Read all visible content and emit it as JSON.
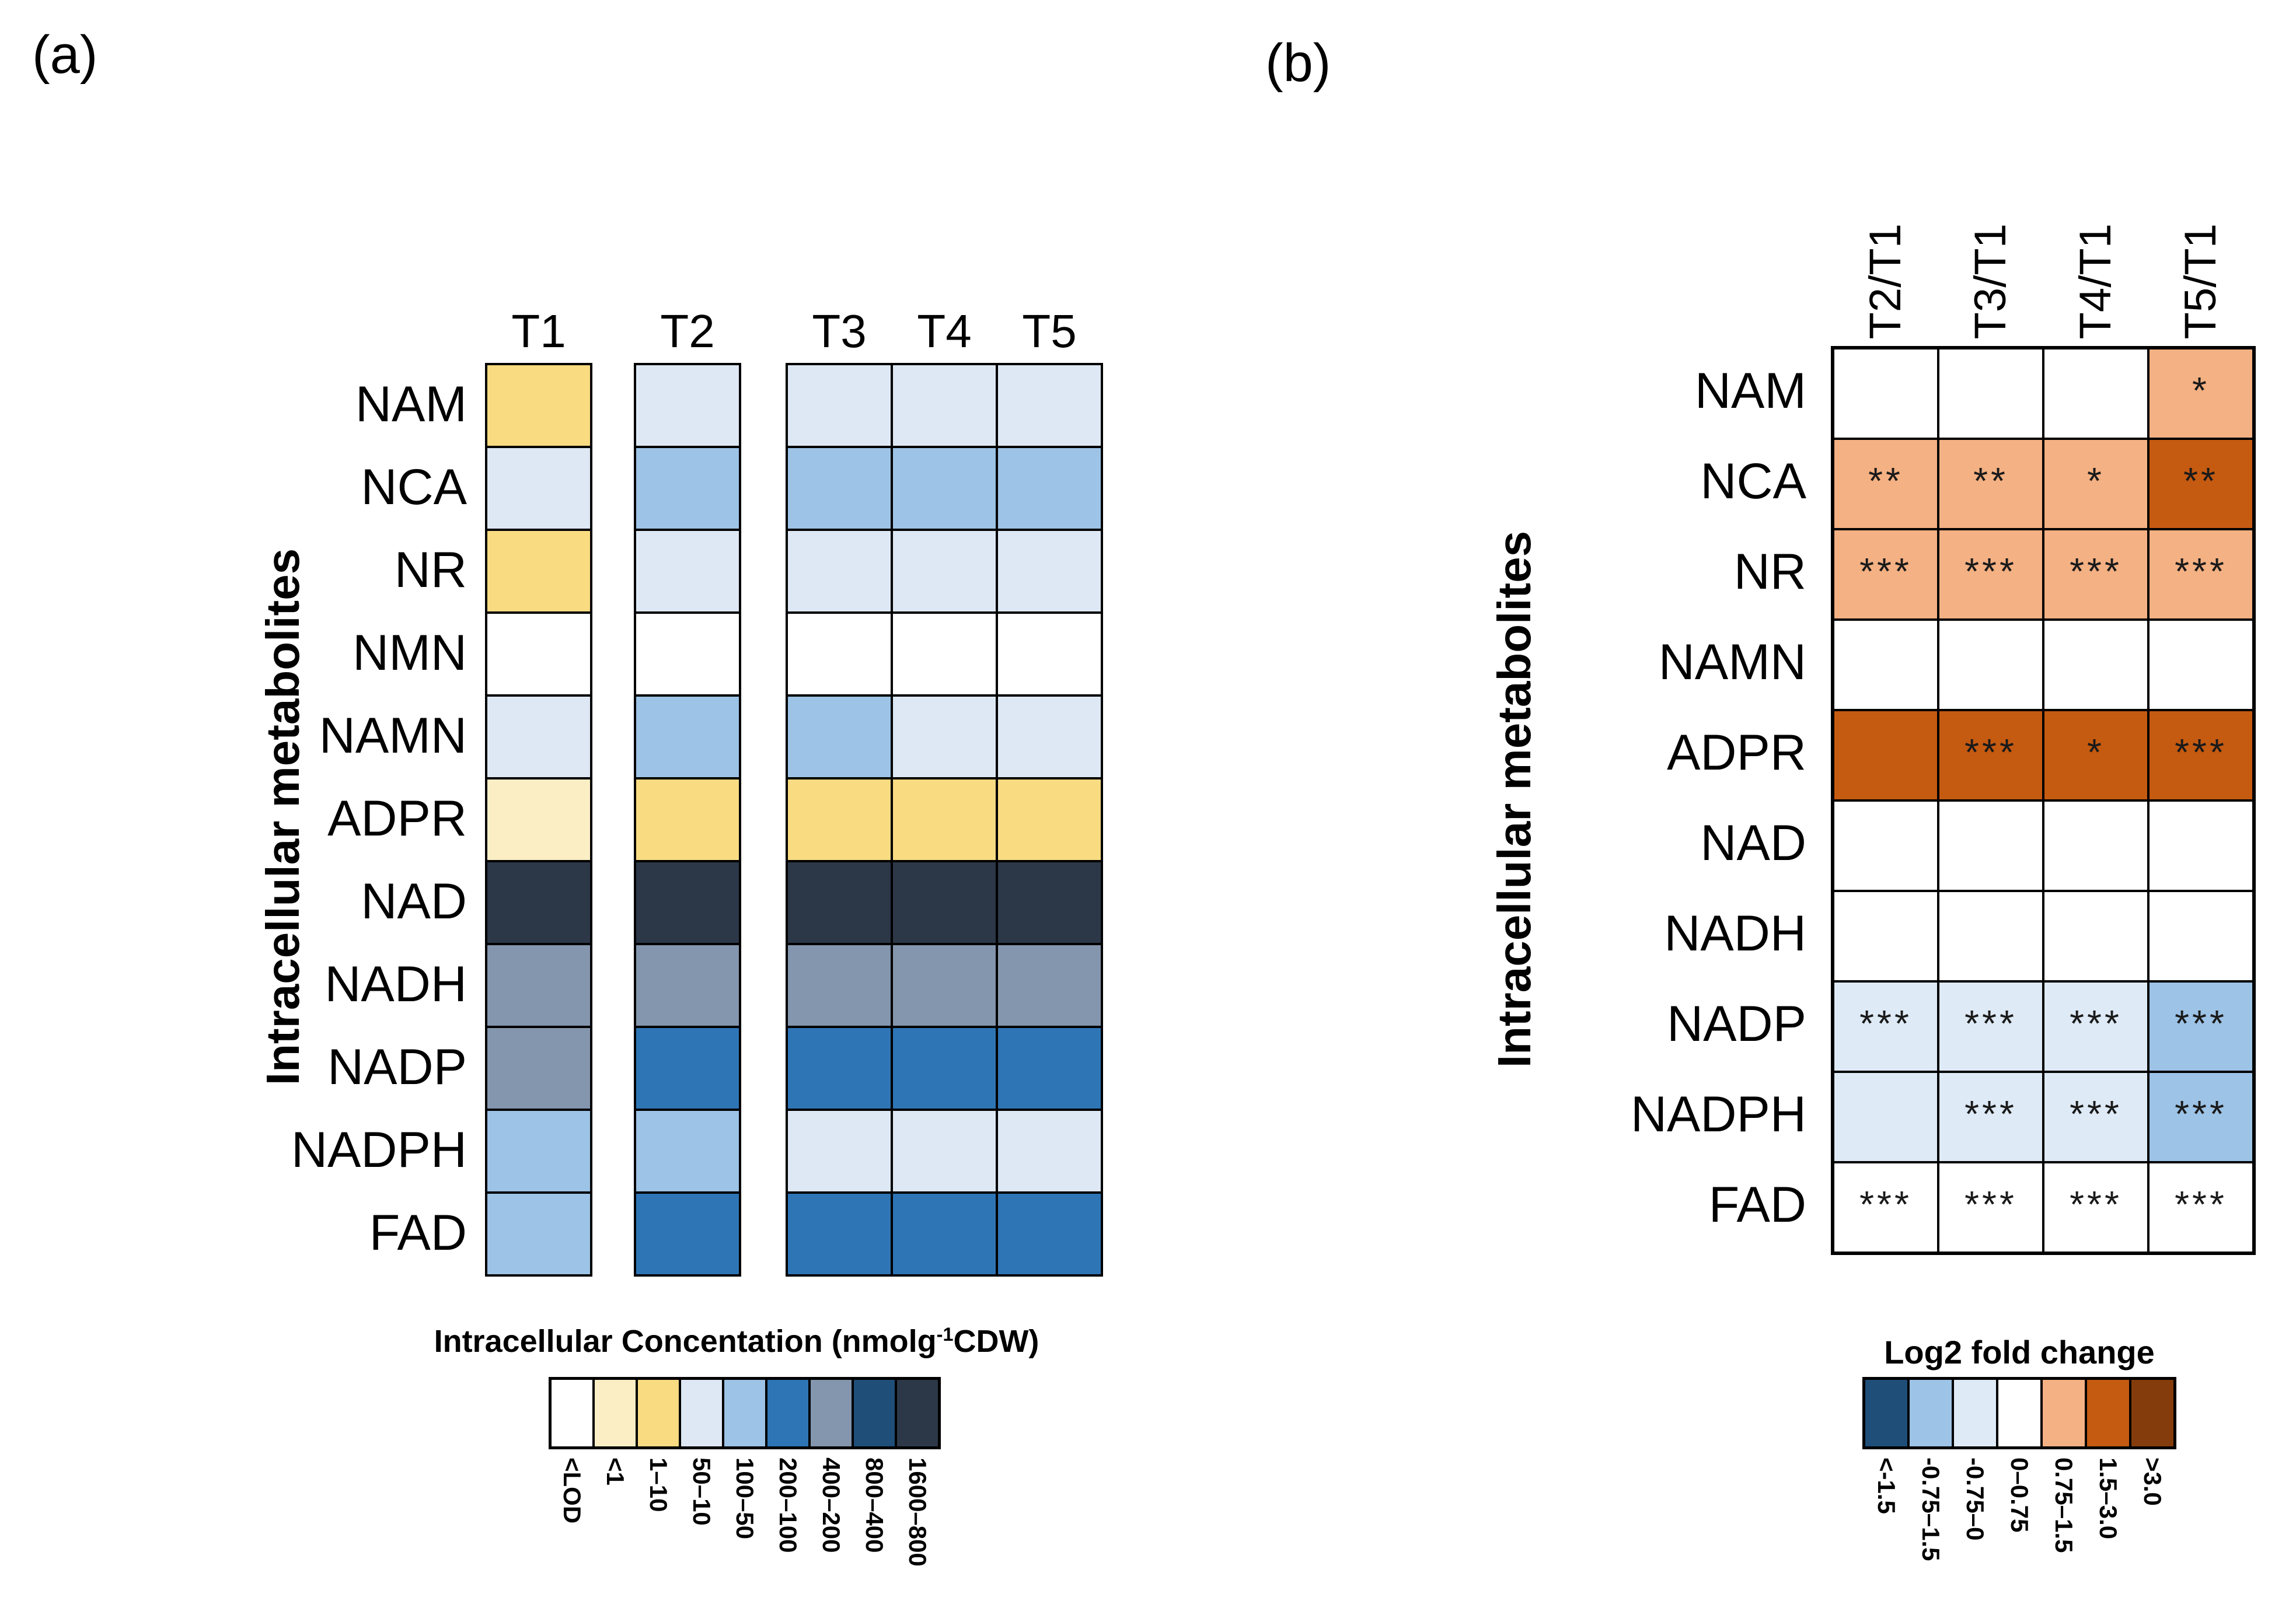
{
  "panels": {
    "a": {
      "label": "(a)",
      "y_axis_label": "Intracellular metabolites",
      "columns": [
        "T1",
        "T2",
        "T3",
        "T4",
        "T5"
      ],
      "rows": [
        "NAM",
        "NCA",
        "NR",
        "NMN",
        "NAMN",
        "ADPR",
        "NAD",
        "NADH",
        "NADP",
        "NADPH",
        "FAD"
      ],
      "legend": {
        "title_main": "Intracellular Concentation (nmolg",
        "title_sup": "-1",
        "title_end": "CDW)",
        "bins": [
          {
            "label": "<LOD",
            "color": "#FFFFFF"
          },
          {
            "label": "<1",
            "color": "#FBEEC5"
          },
          {
            "label": "1–10",
            "color": "#F9DB81"
          },
          {
            "label": "50–10",
            "color": "#DDE8F4"
          },
          {
            "label": "100–50",
            "color": "#9DC3E6"
          },
          {
            "label": "200–100",
            "color": "#2E75B6"
          },
          {
            "label": "400–200",
            "color": "#8496AE"
          },
          {
            "label": "800–400",
            "color": "#1F4E79"
          },
          {
            "label": "1600–800",
            "color": "#2C3848"
          }
        ]
      }
    },
    "b": {
      "label": "(b)",
      "y_axis_label": "Intracellular metabolites",
      "columns": [
        "T2/T1",
        "T3/T1",
        "T4/T1",
        "T5/T1"
      ],
      "rows": [
        "NAM",
        "NCA",
        "NR",
        "NAMN",
        "ADPR",
        "NAD",
        "NADH",
        "NADP",
        "NADPH",
        "FAD"
      ],
      "legend": {
        "title": "Log2 fold change",
        "bins": [
          {
            "label": "<-1.5",
            "color": "#1F4E79"
          },
          {
            "label": "-0.75–1.5",
            "color": "#9DC3E6"
          },
          {
            "label": "-0.75–0",
            "color": "#DEEAF6"
          },
          {
            "label": "0–0.75",
            "color": "#FFFFFF"
          },
          {
            "label": "0.75–1.5",
            "color": "#F4B183"
          },
          {
            "label": "1.5–3.0",
            "color": "#C55A11"
          },
          {
            "label": ">3.0",
            "color": "#843C0C"
          }
        ]
      }
    }
  },
  "chart_data": [
    {
      "type": "heatmap",
      "panel": "a",
      "title": "",
      "xlabel": "",
      "ylabel": "Intracellular metabolites",
      "legend_title": "Intracellular Concentation (nmolg-1CDW)",
      "legend_position": "bottom",
      "columns": [
        "T1",
        "T2",
        "T3",
        "T4",
        "T5"
      ],
      "rows": [
        "NAM",
        "NCA",
        "NR",
        "NMN",
        "NAMN",
        "ADPR",
        "NAD",
        "NADH",
        "NADP",
        "NADPH",
        "FAD"
      ],
      "values": [
        [
          "1–10",
          "50–10",
          "50–10",
          "50–10",
          "50–10"
        ],
        [
          "50–10",
          "100–50",
          "100–50",
          "100–50",
          "100–50"
        ],
        [
          "1–10",
          "50–10",
          "50–10",
          "50–10",
          "50–10"
        ],
        [
          "<LOD",
          "<LOD",
          "<LOD",
          "<LOD",
          "<LOD"
        ],
        [
          "50–10",
          "100–50",
          "100–50",
          "50–10",
          "50–10"
        ],
        [
          "<1",
          "1–10",
          "1–10",
          "1–10",
          "1–10"
        ],
        [
          "1600–800",
          "1600–800",
          "1600–800",
          "1600–800",
          "1600–800"
        ],
        [
          "400–200",
          "400–200",
          "400–200",
          "400–200",
          "400–200"
        ],
        [
          "400–200",
          "200–100",
          "200–100",
          "200–100",
          "200–100"
        ],
        [
          "100–50",
          "100–50",
          "50–10",
          "50–10",
          "50–10"
        ],
        [
          "100–50",
          "200–100",
          "200–100",
          "200–100",
          "200–100"
        ]
      ]
    },
    {
      "type": "heatmap",
      "panel": "b",
      "title": "",
      "xlabel": "",
      "ylabel": "Intracellular metabolites",
      "legend_title": "Log2 fold change",
      "legend_position": "bottom",
      "columns": [
        "T2/T1",
        "T3/T1",
        "T4/T1",
        "T5/T1"
      ],
      "rows": [
        "NAM",
        "NCA",
        "NR",
        "NAMN",
        "ADPR",
        "NAD",
        "NADH",
        "NADP",
        "NADPH",
        "FAD"
      ],
      "values": [
        [
          "0–0.75",
          "0–0.75",
          "0–0.75",
          "0.75–1.5"
        ],
        [
          "0.75–1.5",
          "0.75–1.5",
          "0.75–1.5",
          "1.5–3.0"
        ],
        [
          "0.75–1.5",
          "0.75–1.5",
          "0.75–1.5",
          "0.75–1.5"
        ],
        [
          "0–0.75",
          "0–0.75",
          "0–0.75",
          "0–0.75"
        ],
        [
          "1.5–3.0",
          "1.5–3.0",
          "1.5–3.0",
          "1.5–3.0"
        ],
        [
          "0–0.75",
          "0–0.75",
          "0–0.75",
          "0–0.75"
        ],
        [
          "0–0.75",
          "0–0.75",
          "0–0.75",
          "0–0.75"
        ],
        [
          "-0.75–0",
          "-0.75–0",
          "-0.75–0",
          "-0.75–1.5"
        ],
        [
          "-0.75–0",
          "-0.75–0",
          "-0.75–0",
          "-0.75–1.5"
        ],
        [
          "0–0.75",
          "0–0.75",
          "0–0.75",
          "0–0.75"
        ]
      ],
      "significance": [
        [
          "",
          "",
          "",
          "*"
        ],
        [
          "**",
          "**",
          "*",
          "**"
        ],
        [
          "***",
          "***",
          "***",
          "***"
        ],
        [
          "",
          "",
          "",
          ""
        ],
        [
          "",
          "***",
          "*",
          "***"
        ],
        [
          "",
          "",
          "",
          ""
        ],
        [
          "",
          "",
          "",
          ""
        ],
        [
          "***",
          "***",
          "***",
          "***"
        ],
        [
          "",
          "***",
          "***",
          "***"
        ],
        [
          "***",
          "***",
          "***",
          "***"
        ]
      ]
    }
  ]
}
